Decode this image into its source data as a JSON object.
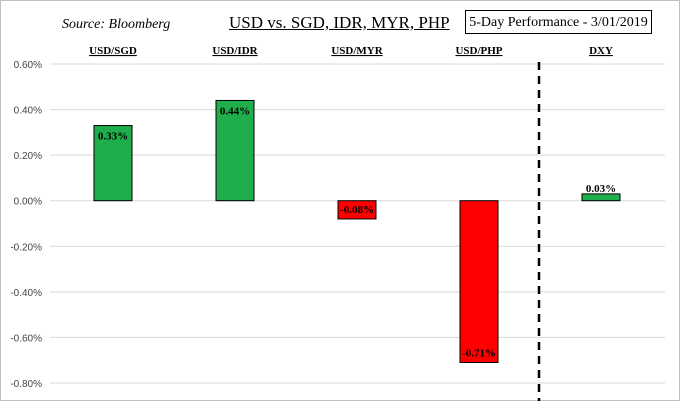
{
  "header": {
    "source": "Source: Bloomberg",
    "title": "USD vs. SGD, IDR, MYR, PHP",
    "performance_label": "5-Day Performance - 3/01/2019"
  },
  "colors": {
    "positive": "#1fae4b",
    "negative": "#ff0000",
    "gridline": "#d9d9d9",
    "divider": "#000000"
  },
  "chart_data": {
    "type": "bar",
    "title": "USD vs. SGD, IDR, MYR, PHP",
    "categories": [
      "USD/SGD",
      "USD/IDR",
      "USD/MYR",
      "USD/PHP",
      "DXY"
    ],
    "values": [
      0.33,
      0.44,
      -0.08,
      -0.71,
      0.03
    ],
    "value_labels": [
      "0.33%",
      "0.44%",
      "-0.08%",
      "-0.71%",
      "0.03%"
    ],
    "unit": "%",
    "ylim": [
      -0.8,
      0.6
    ],
    "yticks": [
      0.6,
      0.4,
      0.2,
      0.0,
      -0.2,
      -0.4,
      -0.6,
      -0.8
    ],
    "ytick_labels": [
      "0.60%",
      "0.40%",
      "0.20%",
      "0.00%",
      "-0.20%",
      "-0.40%",
      "-0.60%",
      "-0.80%"
    ],
    "grid": true,
    "divider_after_category": "USD/PHP"
  }
}
